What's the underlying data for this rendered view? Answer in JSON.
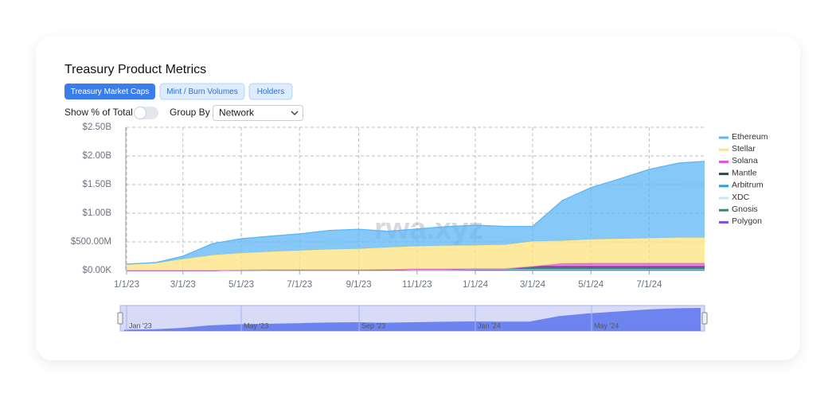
{
  "header": {
    "title": "Treasury Product Metrics"
  },
  "tabs": [
    "Treasury Market Caps",
    "Mint / Burn Volumes",
    "Holders"
  ],
  "controls": {
    "toggle_label": "Show % of Total",
    "group_label": "Group By",
    "group_value": "Network"
  },
  "chart_data": {
    "type": "stacked-area",
    "watermark": "rwa.xyz",
    "x": [
      "1/1/23",
      "2/1/23",
      "3/1/23",
      "4/1/23",
      "5/1/23",
      "6/1/23",
      "7/1/23",
      "8/1/23",
      "9/1/23",
      "10/1/23",
      "11/1/23",
      "12/1/23",
      "1/1/24",
      "2/1/24",
      "3/1/24",
      "4/1/24",
      "5/1/24",
      "6/1/24",
      "7/1/24",
      "8/1/24",
      "8/28/24"
    ],
    "xlim": [
      "1/1/23",
      "8/28/24"
    ],
    "xticks": [
      "1/1/23",
      "3/1/23",
      "5/1/23",
      "7/1/23",
      "9/1/23",
      "11/1/23",
      "1/1/24",
      "3/1/24",
      "5/1/24",
      "7/1/24"
    ],
    "ylim": [
      0,
      2500000000
    ],
    "yticks": [
      {
        "value": 0,
        "label": "$0.00K"
      },
      {
        "value": 500000000,
        "label": "$500.00M"
      },
      {
        "value": 1000000000,
        "label": "$1.00B"
      },
      {
        "value": 1500000000,
        "label": "$1.50B"
      },
      {
        "value": 2000000000,
        "label": "$2.00B"
      },
      {
        "value": 2500000000,
        "label": "$2.50B"
      }
    ],
    "grid": true,
    "legend": "right",
    "series": [
      {
        "name": "Ethereum",
        "color": "#5db6f6",
        "values": [
          0,
          10000000,
          50000000,
          200000000,
          250000000,
          270000000,
          290000000,
          330000000,
          340000000,
          280000000,
          300000000,
          330000000,
          350000000,
          320000000,
          260000000,
          700000000,
          900000000,
          1050000000,
          1200000000,
          1300000000,
          1330000000
        ]
      },
      {
        "name": "Stellar",
        "color": "#fde37f",
        "values": [
          110000000,
          130000000,
          200000000,
          270000000,
          300000000,
          320000000,
          340000000,
          360000000,
          370000000,
          390000000,
          400000000,
          410000000,
          410000000,
          420000000,
          440000000,
          400000000,
          420000000,
          430000000,
          440000000,
          450000000,
          450000000
        ]
      },
      {
        "name": "Solana",
        "color": "#e84fe0",
        "values": [
          0,
          0,
          0,
          0,
          0,
          0,
          0,
          0,
          0,
          0,
          0,
          0,
          0,
          0,
          0,
          50000000,
          55000000,
          55000000,
          55000000,
          55000000,
          55000000
        ]
      },
      {
        "name": "Mantle",
        "color": "#1d4f58",
        "values": [
          0,
          0,
          0,
          0,
          0,
          0,
          0,
          0,
          0,
          0,
          0,
          0,
          0,
          0,
          40000000,
          40000000,
          40000000,
          40000000,
          40000000,
          40000000,
          40000000
        ]
      },
      {
        "name": "Arbitrum",
        "color": "#29a2d8",
        "values": [
          0,
          0,
          0,
          0,
          0,
          0,
          0,
          0,
          0,
          0,
          10000000,
          10000000,
          10000000,
          10000000,
          10000000,
          10000000,
          10000000,
          10000000,
          10000000,
          10000000,
          10000000
        ]
      },
      {
        "name": "XDC",
        "color": "#bfe7f8",
        "values": [
          0,
          0,
          0,
          0,
          0,
          0,
          0,
          0,
          0,
          0,
          0,
          0,
          3000000,
          3000000,
          3000000,
          3000000,
          3000000,
          3000000,
          3000000,
          3000000,
          3000000
        ]
      },
      {
        "name": "Gnosis",
        "color": "#2f8f5b",
        "values": [
          0,
          0,
          0,
          0,
          0,
          0,
          0,
          0,
          0,
          0,
          0,
          0,
          3000000,
          3000000,
          3000000,
          3000000,
          3000000,
          3000000,
          3000000,
          3000000,
          3000000
        ]
      },
      {
        "name": "Polygon",
        "color": "#7a4fe2",
        "values": [
          0,
          0,
          0,
          0,
          5000000,
          10000000,
          10000000,
          10000000,
          10000000,
          15000000,
          15000000,
          15000000,
          15000000,
          15000000,
          15000000,
          15000000,
          15000000,
          15000000,
          15000000,
          15000000,
          15000000
        ]
      }
    ],
    "navigator_labels": [
      "Jan '23",
      "May '23",
      "Sep '23",
      "Jan '24",
      "May '24"
    ]
  }
}
